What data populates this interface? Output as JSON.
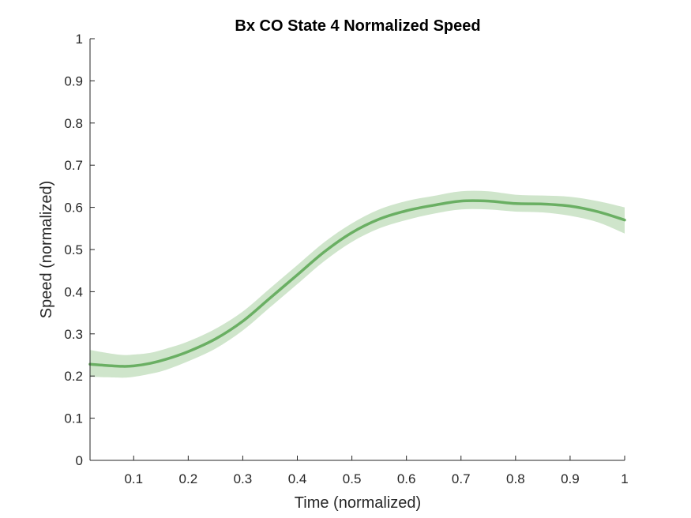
{
  "chart_data": {
    "type": "line",
    "title": "Bx  CO State 4 Normalized Speed",
    "xlabel": "Time (normalized)",
    "ylabel": "Speed (normalized)",
    "xlim": [
      0.02,
      1.0
    ],
    "ylim": [
      0,
      1
    ],
    "xticks": [
      0.1,
      0.2,
      0.3,
      0.4,
      0.5,
      0.6,
      0.7,
      0.8,
      0.9,
      1
    ],
    "xtick_labels": [
      "0.1",
      "0.2",
      "0.3",
      "0.4",
      "0.5",
      "0.6",
      "0.7",
      "0.8",
      "0.9",
      "1"
    ],
    "yticks": [
      0,
      0.1,
      0.2,
      0.3,
      0.4,
      0.5,
      0.6,
      0.7,
      0.8,
      0.9,
      1
    ],
    "ytick_labels": [
      "0",
      "0.1",
      "0.2",
      "0.3",
      "0.4",
      "0.5",
      "0.6",
      "0.7",
      "0.8",
      "0.9",
      "1"
    ],
    "grid": false,
    "legend": "none",
    "colors": {
      "line": "#6aaf63",
      "band": "#cfe5cb",
      "axis": "#262626"
    },
    "series": [
      {
        "x": [
          0.02,
          0.05,
          0.08,
          0.1,
          0.13,
          0.16,
          0.2,
          0.25,
          0.3,
          0.35,
          0.4,
          0.45,
          0.5,
          0.55,
          0.6,
          0.65,
          0.7,
          0.75,
          0.8,
          0.85,
          0.9,
          0.95,
          1.0
        ],
        "y": [
          0.228,
          0.225,
          0.223,
          0.224,
          0.23,
          0.24,
          0.258,
          0.288,
          0.33,
          0.385,
          0.44,
          0.495,
          0.54,
          0.572,
          0.592,
          0.605,
          0.615,
          0.615,
          0.609,
          0.608,
          0.603,
          0.59,
          0.57
        ],
        "lower": [
          0.198,
          0.197,
          0.196,
          0.198,
          0.205,
          0.215,
          0.235,
          0.265,
          0.308,
          0.363,
          0.418,
          0.473,
          0.518,
          0.55,
          0.57,
          0.585,
          0.595,
          0.595,
          0.59,
          0.588,
          0.58,
          0.565,
          0.538
        ],
        "upper": [
          0.262,
          0.255,
          0.25,
          0.251,
          0.255,
          0.265,
          0.282,
          0.312,
          0.353,
          0.408,
          0.463,
          0.518,
          0.562,
          0.595,
          0.615,
          0.627,
          0.638,
          0.638,
          0.63,
          0.628,
          0.625,
          0.615,
          0.6
        ]
      }
    ]
  }
}
